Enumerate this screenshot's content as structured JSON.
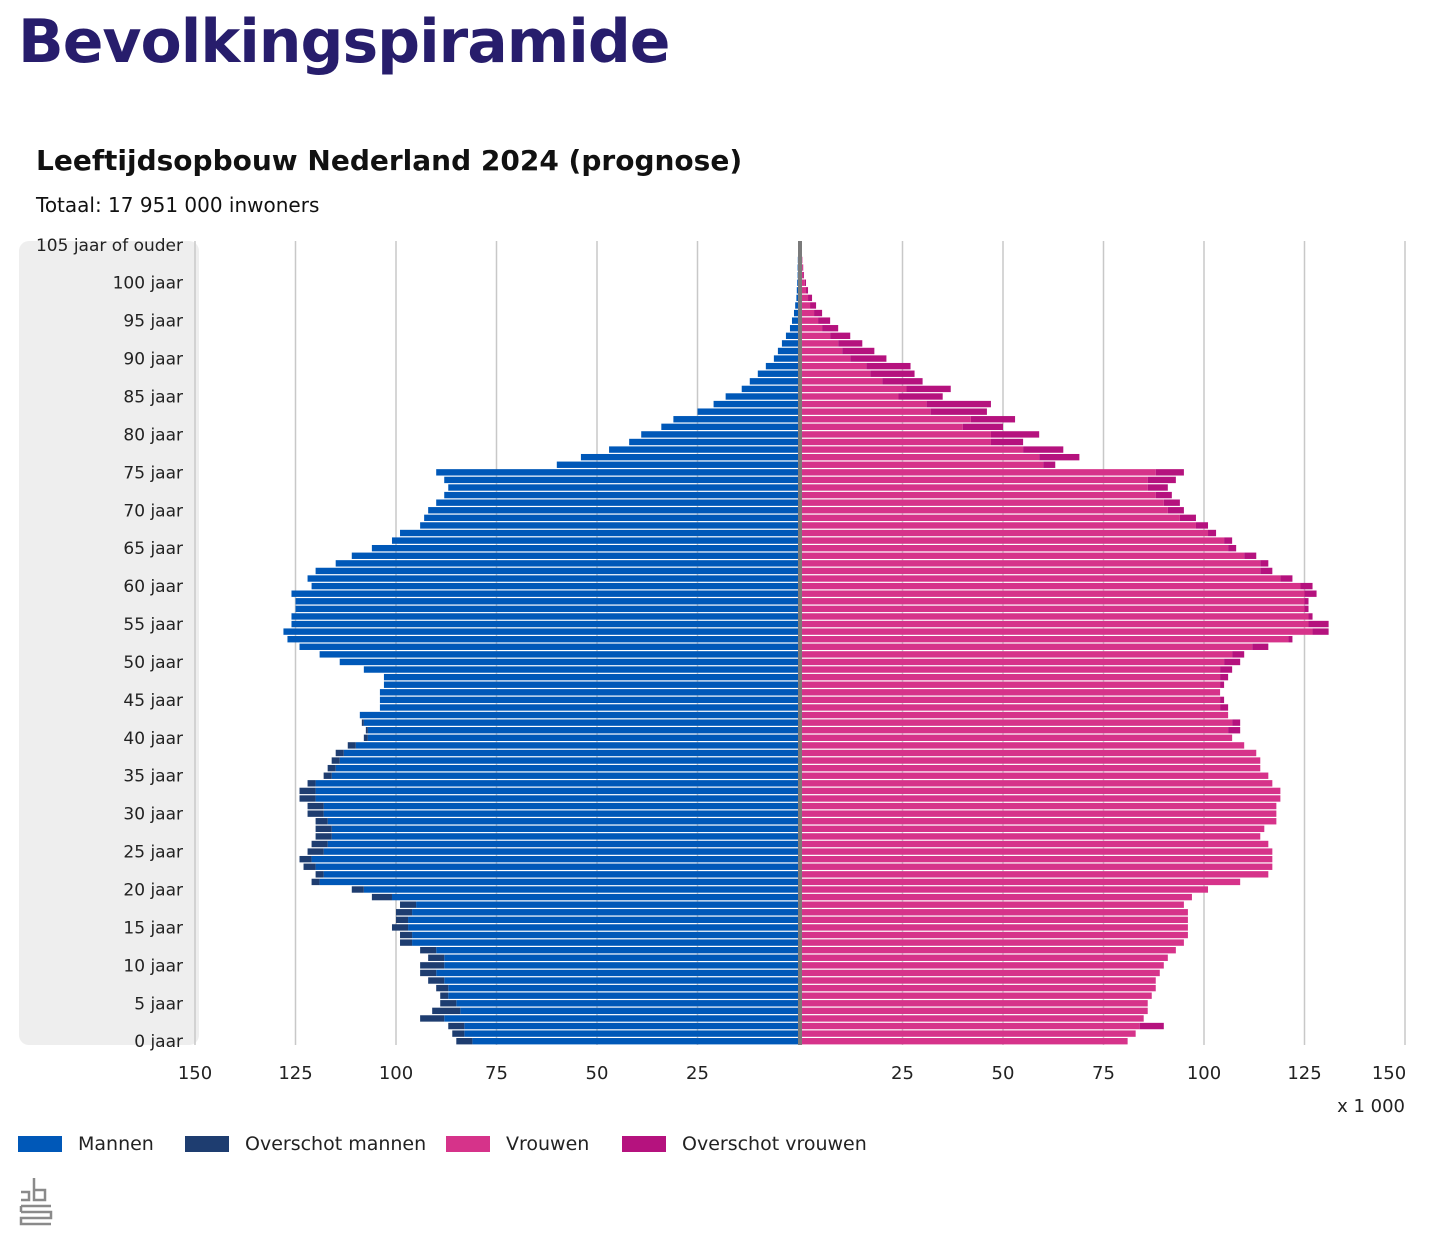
{
  "page": {
    "title": "Bevolkingspiramide"
  },
  "chart_data": {
    "type": "bar",
    "title": "Leeftijdsopbouw Nederland 2024 (prognose)",
    "subtitle": "Totaal: 17 951 000 inwoners",
    "x_unit": "x 1 000",
    "xlim": [
      0,
      150
    ],
    "x_ticks": {
      "left": [
        150,
        125,
        100,
        75,
        50,
        25
      ],
      "right": [
        25,
        50,
        75,
        100,
        125,
        150
      ]
    },
    "age_ticks": [
      {
        "age": 105,
        "label": "105 jaar of ouder"
      },
      {
        "age": 100,
        "label": "100 jaar"
      },
      {
        "age": 95,
        "label": "95 jaar"
      },
      {
        "age": 90,
        "label": "90 jaar"
      },
      {
        "age": 85,
        "label": "85 jaar"
      },
      {
        "age": 80,
        "label": "80 jaar"
      },
      {
        "age": 75,
        "label": "75 jaar"
      },
      {
        "age": 70,
        "label": "70 jaar"
      },
      {
        "age": 65,
        "label": "65 jaar"
      },
      {
        "age": 60,
        "label": "60 jaar"
      },
      {
        "age": 55,
        "label": "55 jaar"
      },
      {
        "age": 50,
        "label": "50 jaar"
      },
      {
        "age": 45,
        "label": "45 jaar"
      },
      {
        "age": 40,
        "label": "40 jaar"
      },
      {
        "age": 35,
        "label": "35 jaar"
      },
      {
        "age": 30,
        "label": "30 jaar"
      },
      {
        "age": 25,
        "label": "25 jaar"
      },
      {
        "age": 20,
        "label": "20 jaar"
      },
      {
        "age": 15,
        "label": "15 jaar"
      },
      {
        "age": 10,
        "label": "10 jaar"
      },
      {
        "age": 5,
        "label": "5 jaar"
      },
      {
        "age": 0,
        "label": "0 jaar"
      }
    ],
    "ages": [
      0,
      1,
      2,
      3,
      4,
      5,
      6,
      7,
      8,
      9,
      10,
      11,
      12,
      13,
      14,
      15,
      16,
      17,
      18,
      19,
      20,
      21,
      22,
      23,
      24,
      25,
      26,
      27,
      28,
      29,
      30,
      31,
      32,
      33,
      34,
      35,
      36,
      37,
      38,
      39,
      40,
      41,
      42,
      43,
      44,
      45,
      46,
      47,
      48,
      49,
      50,
      51,
      52,
      53,
      54,
      55,
      56,
      57,
      58,
      59,
      60,
      61,
      62,
      63,
      64,
      65,
      66,
      67,
      68,
      69,
      70,
      71,
      72,
      73,
      74,
      75,
      76,
      77,
      78,
      79,
      80,
      81,
      82,
      83,
      84,
      85,
      86,
      87,
      88,
      89,
      90,
      91,
      92,
      93,
      94,
      95,
      96,
      97,
      98,
      99,
      100,
      101,
      102,
      103,
      104,
      105
    ],
    "series": [
      {
        "name": "Mannen",
        "color": "#0058b8",
        "values": [
          81,
          83,
          83,
          88,
          84,
          85,
          87,
          87,
          88,
          90,
          88,
          88,
          90,
          96,
          96,
          97,
          97,
          96,
          95,
          101,
          108,
          119,
          118,
          120,
          121,
          118,
          117,
          116,
          116,
          117,
          118,
          118,
          120,
          120,
          120,
          116,
          115,
          114,
          113,
          110,
          107,
          107,
          108,
          109,
          104,
          104,
          104,
          103,
          103,
          108,
          114,
          119,
          124,
          127,
          128,
          126,
          126,
          125,
          125,
          126,
          121,
          122,
          120,
          115,
          111,
          106,
          101,
          99,
          94,
          93,
          92,
          90,
          88,
          87,
          88,
          90,
          60,
          54,
          47,
          42,
          39,
          34,
          31,
          25,
          21,
          18,
          14,
          12,
          10,
          8,
          6,
          5,
          4,
          3,
          2,
          1.5,
          1,
          0.7,
          0.4,
          0.3,
          0.2,
          0.1,
          0.1,
          0.05,
          0,
          0
        ]
      },
      {
        "name": "Overschot mannen",
        "color": "#1e3d70",
        "values": [
          4,
          3,
          4,
          6,
          7,
          4,
          2,
          3,
          4,
          4,
          6,
          4,
          4,
          3,
          3,
          4,
          3,
          4,
          4,
          5,
          3,
          2,
          2,
          3,
          3,
          4,
          4,
          4,
          4,
          3,
          4,
          4,
          4,
          4,
          2,
          2,
          2,
          2,
          2,
          2,
          1,
          0.5,
          0.5,
          0,
          0,
          0,
          0,
          0,
          0,
          0,
          0,
          0,
          0,
          0,
          0,
          0,
          0,
          0,
          0,
          0,
          0,
          0,
          0,
          0,
          0,
          0,
          0,
          0,
          0,
          0,
          0,
          0,
          0,
          0,
          0,
          0,
          0,
          0,
          0,
          0,
          0,
          0,
          0,
          0,
          0,
          0,
          0,
          0,
          0,
          0,
          0,
          0,
          0,
          0,
          0,
          0,
          0,
          0,
          0,
          0,
          0,
          0,
          0,
          0,
          0,
          0
        ]
      },
      {
        "name": "Vrouwen",
        "color": "#d6338a",
        "values": [
          81,
          83,
          84,
          85,
          86,
          86,
          87,
          88,
          88,
          89,
          90,
          91,
          93,
          95,
          96,
          96,
          96,
          96,
          95,
          97,
          101,
          109,
          116,
          117,
          117,
          117,
          116,
          114,
          115,
          118,
          118,
          118,
          119,
          119,
          117,
          116,
          114,
          114,
          113,
          110,
          107,
          106,
          107,
          106,
          104,
          104,
          104,
          104,
          104,
          104,
          105,
          107,
          112,
          121,
          127,
          126,
          126,
          125,
          125,
          125,
          124,
          119,
          114,
          114,
          110,
          106,
          105,
          101,
          98,
          94,
          91,
          90,
          88,
          86,
          86,
          88,
          60,
          59,
          55,
          47,
          47,
          40,
          42,
          32,
          31,
          24,
          26,
          20,
          17,
          16,
          12,
          10,
          9,
          7,
          5,
          4,
          3,
          2,
          1.5,
          1,
          0.7,
          0.3,
          0.2,
          0.1,
          0,
          0
        ]
      },
      {
        "name": "Overschot vrouwen",
        "color": "#b5127e",
        "values": [
          0,
          0,
          6,
          0,
          0,
          0,
          0,
          0,
          0,
          0,
          0,
          0,
          0,
          0,
          0,
          0,
          0,
          0,
          0,
          0,
          0,
          0,
          0,
          0,
          0,
          0,
          0,
          0,
          0,
          0,
          0,
          0,
          0,
          0,
          0,
          0,
          0,
          0,
          0,
          0,
          0,
          3,
          2,
          0,
          2,
          1,
          0,
          1,
          2,
          3,
          4,
          3,
          4,
          1,
          4,
          5,
          1,
          1,
          1,
          3,
          3,
          3,
          3,
          2,
          3,
          2,
          2,
          2,
          3,
          4,
          4,
          4,
          4,
          5,
          7,
          7,
          3,
          10,
          10,
          8,
          12,
          10,
          11,
          14,
          16,
          11,
          11,
          10,
          11,
          11,
          9,
          8,
          6,
          5,
          4,
          3,
          2,
          1.5,
          1,
          0.5,
          0.3,
          0.2,
          0.1,
          0,
          0,
          0
        ]
      }
    ]
  },
  "legend": [
    {
      "label": "Mannen",
      "color": "#0058b8"
    },
    {
      "label": "Overschot mannen",
      "color": "#1e3d70"
    },
    {
      "label": "Vrouwen",
      "color": "#d6338a"
    },
    {
      "label": "Overschot vrouwen",
      "color": "#b5127e"
    }
  ],
  "logo": {
    "name": "cbs-logo-icon"
  }
}
